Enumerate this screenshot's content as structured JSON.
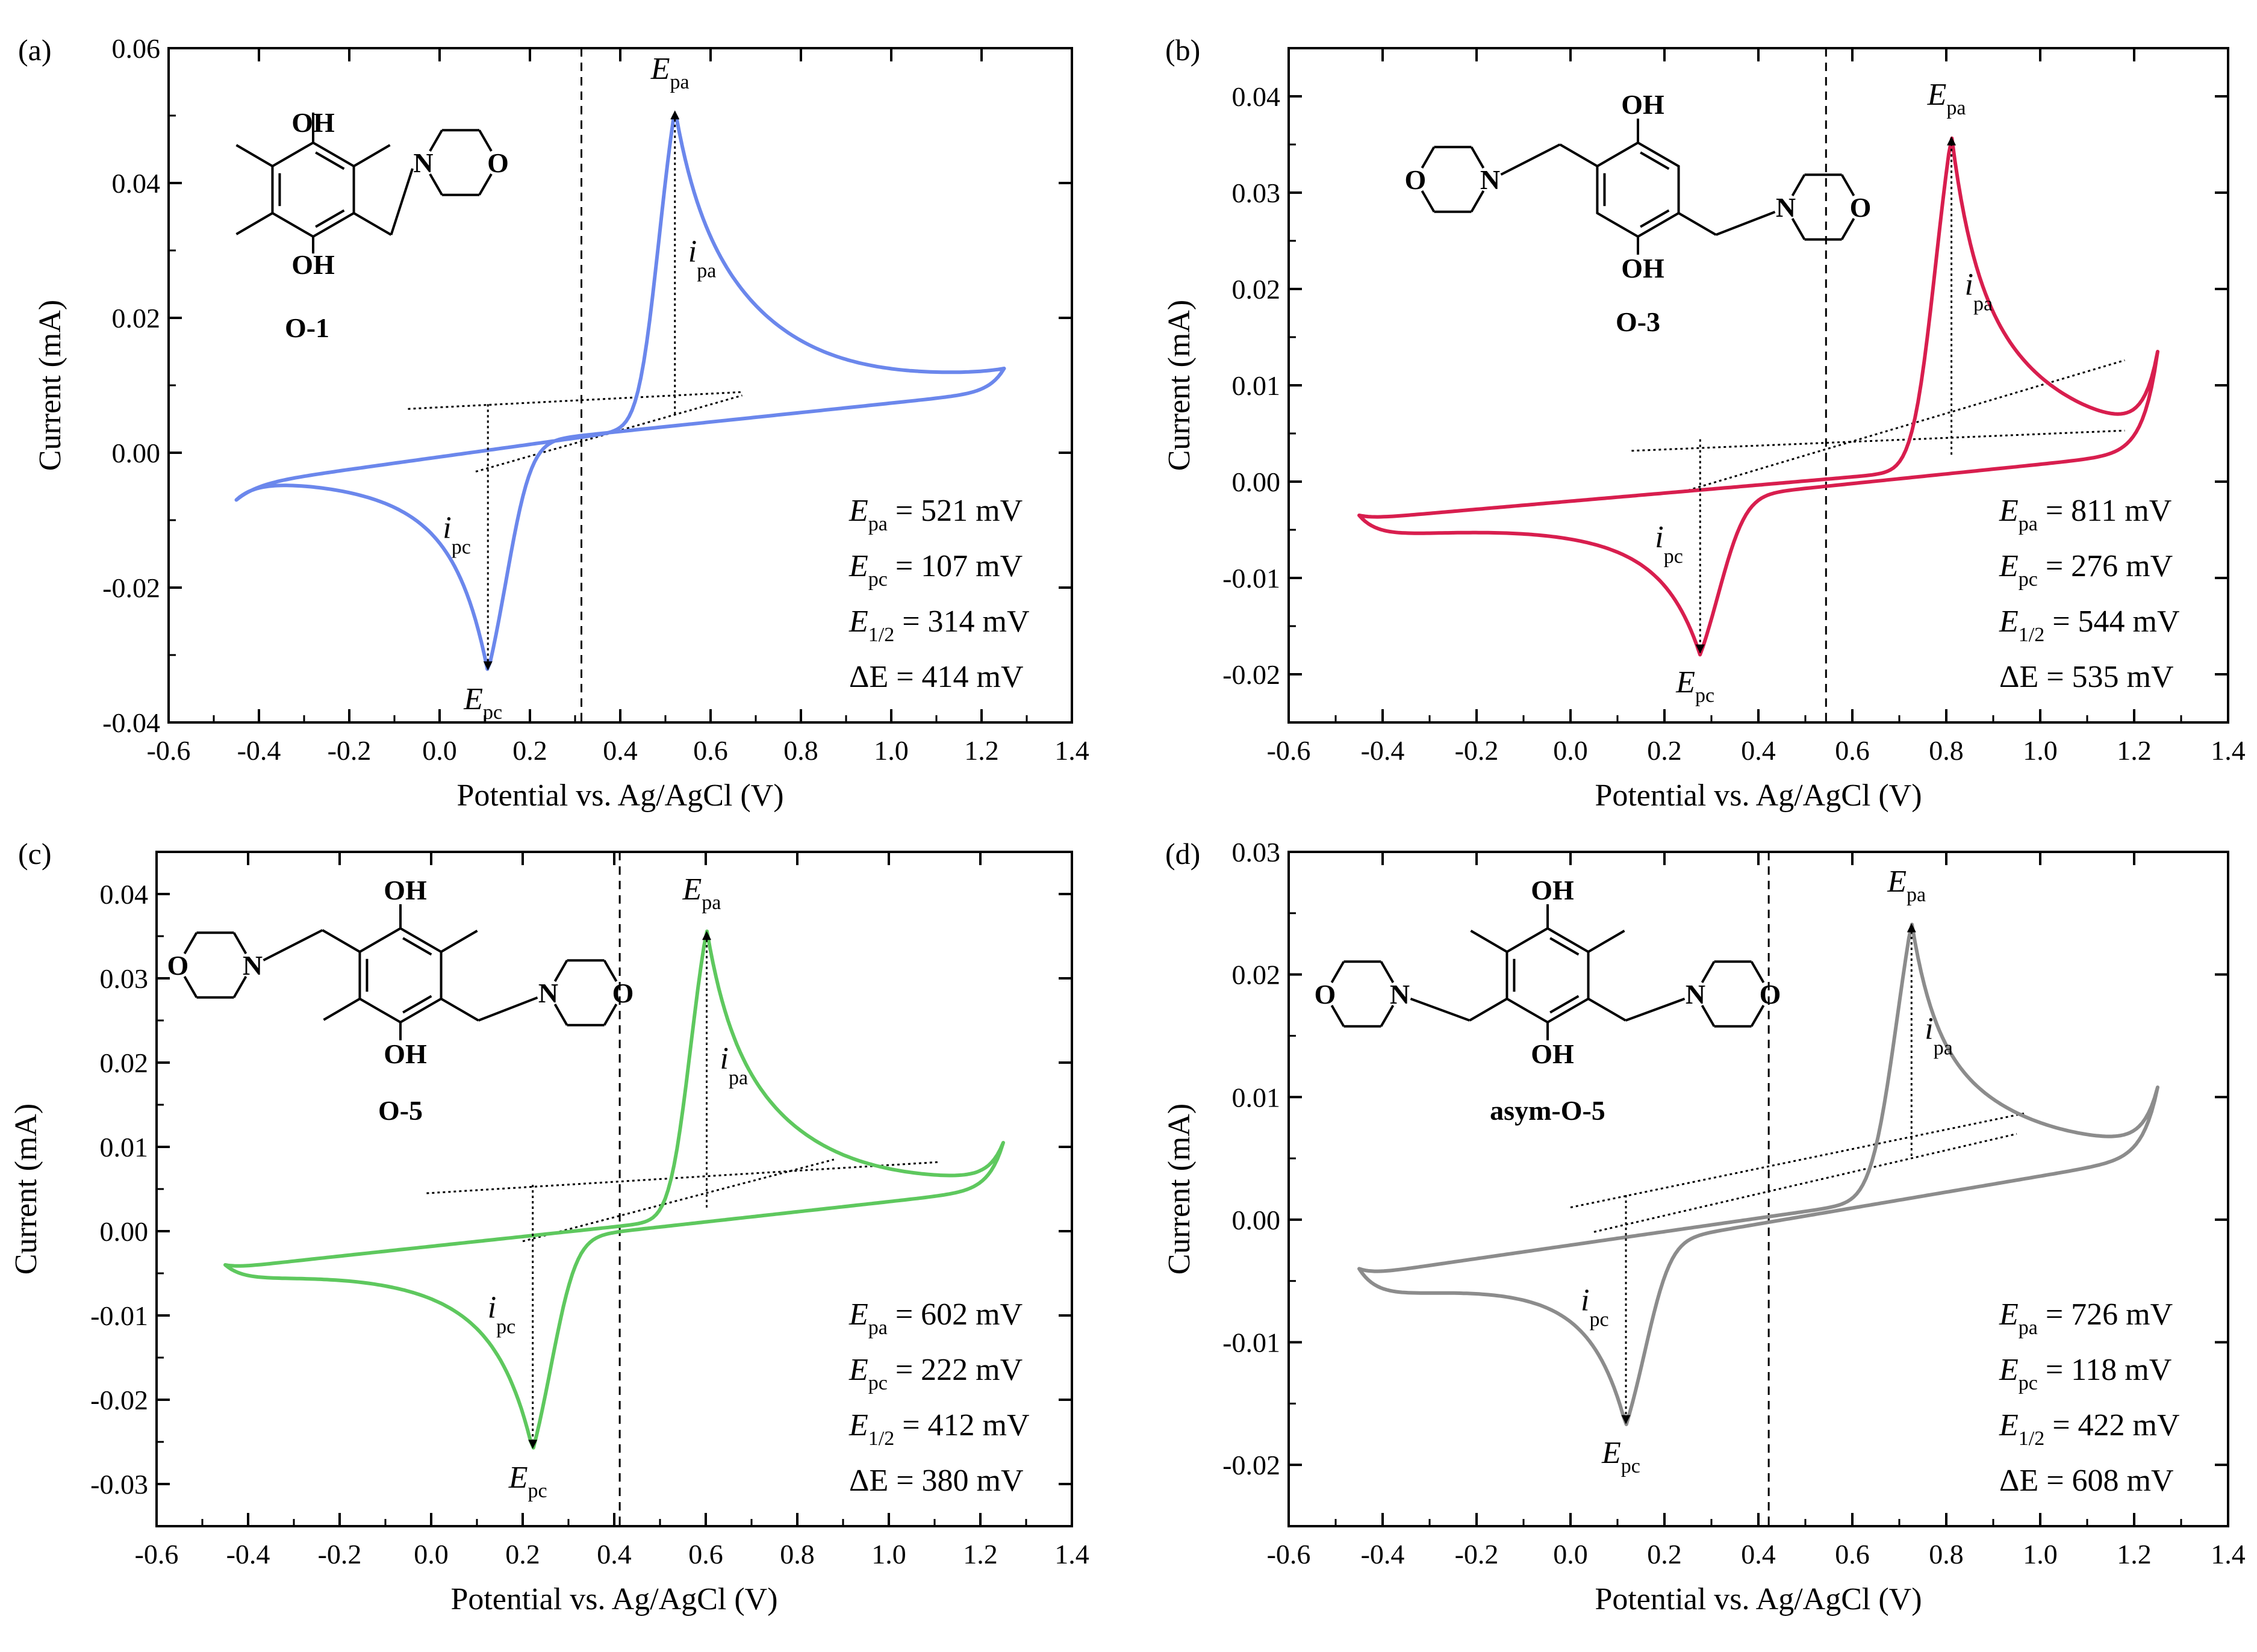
{
  "figure": {
    "xlabel": "Potential vs. Ag/AgCl (V)",
    "ylabel": "Current (mA)"
  },
  "chart_data": [
    {
      "type": "line",
      "panel": "(a)",
      "compound": "O-1",
      "color": "#6b87ec",
      "xlabel": "Potential vs. Ag/AgCl (V)",
      "ylabel": "Current (mA)",
      "xlim": [
        -0.6,
        1.4
      ],
      "ylim": [
        -0.04,
        0.06
      ],
      "xticks": [
        -0.6,
        -0.4,
        -0.2,
        0.0,
        0.2,
        0.4,
        0.6,
        0.8,
        1.0,
        1.2,
        1.4
      ],
      "yticks": [
        -0.04,
        -0.02,
        0.0,
        0.02,
        0.04,
        0.06
      ],
      "xtick_labels": [
        "-0.6",
        "-0.4",
        "-0.2",
        "0.0",
        "0.2",
        "0.4",
        "0.6",
        "0.8",
        "1.0",
        "1.2",
        "1.4"
      ],
      "ytick_labels": [
        "-0.04",
        "-0.02",
        "0.00",
        "0.02",
        "0.04",
        "0.06"
      ],
      "E_half_line": 0.314,
      "scan": {
        "start": -0.45,
        "i_start": -0.007,
        "vertex": 1.25,
        "i_vertex": 0.0125
      },
      "anodic": {
        "Epa": 0.521,
        "ipa_peak": 0.051,
        "base_a": 0.0031,
        "base_s": 0.0093,
        "base_z": 0.4,
        "ox_width": 0.07,
        "tail_amp": 0.037,
        "tail_decay": 0.21
      },
      "cathodic": {
        "Epc": 0.107,
        "ipc_peak": -0.0325,
        "base_a": 0.0033,
        "base_s": 0.007,
        "base_z": 0.42,
        "red_width": 0.085,
        "tail_amp": -0.0172,
        "tail_decay": 0.24
      },
      "baseline_anodic": {
        "x": [
          -0.07,
          0.67
        ],
        "y": [
          0.0065,
          0.009
        ]
      },
      "baseline_cathodic": {
        "x": [
          0.08,
          0.67
        ],
        "y": [
          -0.0028,
          0.0085
        ]
      },
      "ipa_arrow": {
        "x": 0.521,
        "from": 0.0057,
        "to": 0.051
      },
      "ipc_arrow": {
        "x": 0.107,
        "from": 0.0072,
        "to": -0.0325
      },
      "labels": {
        "Epa": "E",
        "Epa_sub": "pa",
        "Epc": "E",
        "Epc_sub": "pc",
        "ipa": "i",
        "ipa_sub": "pa",
        "ipc": "i",
        "ipc_sub": "pc"
      },
      "annotation": [
        {
          "sym": "E",
          "sub": "pa",
          "text": " = 521 mV"
        },
        {
          "sym": "E",
          "sub": "pc",
          "text": " = 107 mV"
        },
        {
          "sym": "E",
          "sub": "1/2",
          "text": " = 314 mV"
        },
        {
          "sym": "ΔE",
          "sub": "",
          "text": " = 414 mV"
        }
      ],
      "structure_labels": [
        "OH",
        "OH",
        "N",
        "O"
      ]
    },
    {
      "type": "line",
      "panel": "(b)",
      "compound": "O-3",
      "color": "#d81e4e",
      "xlabel": "Potential vs. Ag/AgCl (V)",
      "ylabel": "Current (mA)",
      "xlim": [
        -0.6,
        1.4
      ],
      "ylim": [
        -0.025,
        0.045
      ],
      "xticks": [
        -0.6,
        -0.4,
        -0.2,
        0.0,
        0.2,
        0.4,
        0.6,
        0.8,
        1.0,
        1.2,
        1.4
      ],
      "yticks": [
        -0.02,
        -0.01,
        0.0,
        0.01,
        0.02,
        0.03,
        0.04
      ],
      "xtick_labels": [
        "-0.6",
        "-0.4",
        "-0.2",
        "0.0",
        "0.2",
        "0.4",
        "0.6",
        "0.8",
        "1.0",
        "1.2",
        "1.4"
      ],
      "ytick_labels": [
        "-0.02",
        "-0.01",
        "0.00",
        "0.01",
        "0.02",
        "0.03",
        "0.04"
      ],
      "E_half_line": 0.544,
      "scan": {
        "start": -0.45,
        "i_start": -0.0035,
        "vertex": 1.25,
        "i_vertex": 0.0135
      },
      "anodic": {
        "Epa": 0.811,
        "ipa_peak": 0.036,
        "base_a": 0.0007,
        "base_s": 0.0042,
        "base_z": 0.65,
        "ox_width": 0.075,
        "tail_amp": 0.022,
        "tail_decay": 0.2
      },
      "cathodic": {
        "Epc": 0.276,
        "ipc_peak": -0.018,
        "base_a": 0.0003,
        "base_s": 0.005,
        "base_z": 0.7,
        "red_width": 0.09,
        "tail_amp": -0.0095,
        "tail_decay": 0.22
      },
      "baseline_anodic": {
        "x": [
          0.13,
          1.18
        ],
        "y": [
          0.0032,
          0.0053
        ]
      },
      "baseline_cathodic": {
        "x": [
          0.25,
          1.18
        ],
        "y": [
          -0.0009,
          0.0126
        ]
      },
      "ipa_arrow": {
        "x": 0.811,
        "from": 0.0028,
        "to": 0.036
      },
      "ipc_arrow": {
        "x": 0.276,
        "from": 0.0044,
        "to": -0.018
      },
      "labels": {
        "Epa": "E",
        "Epa_sub": "pa",
        "Epc": "E",
        "Epc_sub": "pc",
        "ipa": "i",
        "ipa_sub": "pa",
        "ipc": "i",
        "ipc_sub": "pc"
      },
      "annotation": [
        {
          "sym": "E",
          "sub": "pa",
          "text": " = 811 mV"
        },
        {
          "sym": "E",
          "sub": "pc",
          "text": " = 276 mV"
        },
        {
          "sym": "E",
          "sub": "1/2",
          "text": " = 544 mV"
        },
        {
          "sym": "ΔE",
          "sub": "",
          "text": " = 535 mV"
        }
      ],
      "structure_labels": [
        "OH",
        "OH",
        "N",
        "N",
        "O",
        "O"
      ]
    },
    {
      "type": "line",
      "panel": "(c)",
      "compound": "O-5",
      "color": "#5ec85e",
      "xlabel": "Potential vs. Ag/AgCl (V)",
      "ylabel": "Current (mA)",
      "xlim": [
        -0.6,
        1.4
      ],
      "ylim": [
        -0.035,
        0.045
      ],
      "xticks": [
        -0.6,
        -0.4,
        -0.2,
        0.0,
        0.2,
        0.4,
        0.6,
        0.8,
        1.0,
        1.2,
        1.4
      ],
      "yticks": [
        -0.03,
        -0.02,
        -0.01,
        0.0,
        0.01,
        0.02,
        0.03,
        0.04
      ],
      "xtick_labels": [
        "-0.6",
        "-0.4",
        "-0.2",
        "0.0",
        "0.2",
        "0.4",
        "0.6",
        "0.8",
        "1.0",
        "1.2",
        "1.4"
      ],
      "ytick_labels": [
        "-0.03",
        "-0.02",
        "-0.01",
        "0.00",
        "0.01",
        "0.02",
        "0.03",
        "0.04"
      ],
      "E_half_line": 0.412,
      "scan": {
        "start": -0.45,
        "i_start": -0.004,
        "vertex": 1.25,
        "i_vertex": 0.0105
      },
      "anodic": {
        "Epa": 0.602,
        "ipa_peak": 0.0358,
        "base_a": 0.0011,
        "base_s": 0.0058,
        "base_z": 0.5,
        "ox_width": 0.07,
        "tail_amp": 0.025,
        "tail_decay": 0.2
      },
      "cathodic": {
        "Epc": 0.222,
        "ipc_peak": -0.026,
        "base_a": 0.0008,
        "base_s": 0.006,
        "base_z": 0.55,
        "red_width": 0.085,
        "tail_amp": -0.0145,
        "tail_decay": 0.22
      },
      "baseline_anodic": {
        "x": [
          -0.01,
          1.11
        ],
        "y": [
          0.0045,
          0.0082
        ]
      },
      "baseline_cathodic": {
        "x": [
          0.2,
          0.88
        ],
        "y": [
          -0.0012,
          0.0085
        ]
      },
      "ipa_arrow": {
        "x": 0.602,
        "from": 0.0028,
        "to": 0.0358
      },
      "ipc_arrow": {
        "x": 0.222,
        "from": 0.0055,
        "to": -0.026
      },
      "labels": {
        "Epa": "E",
        "Epa_sub": "pa",
        "Epc": "E",
        "Epc_sub": "pc",
        "ipa": "i",
        "ipa_sub": "pa",
        "ipc": "i",
        "ipc_sub": "pc"
      },
      "annotation": [
        {
          "sym": "E",
          "sub": "pa",
          "text": " = 602 mV"
        },
        {
          "sym": "E",
          "sub": "pc",
          "text": " = 222 mV"
        },
        {
          "sym": "E",
          "sub": "1/2",
          "text": " = 412 mV"
        },
        {
          "sym": "ΔE",
          "sub": "",
          "text": " = 380 mV"
        }
      ],
      "structure_labels": [
        "OH",
        "OH",
        "N",
        "N",
        "O",
        "O"
      ]
    },
    {
      "type": "line",
      "panel": "(d)",
      "compound": "asym-O-5",
      "color": "#8c8c8c",
      "xlabel": "Potential vs. Ag/AgCl (V)",
      "ylabel": "Current (mA)",
      "xlim": [
        -0.6,
        1.4
      ],
      "ylim": [
        -0.025,
        0.03
      ],
      "xticks": [
        -0.6,
        -0.4,
        -0.2,
        0.0,
        0.2,
        0.4,
        0.6,
        0.8,
        1.0,
        1.2,
        1.4
      ],
      "yticks": [
        -0.02,
        -0.01,
        0.0,
        0.01,
        0.02,
        0.03
      ],
      "xtick_labels": [
        "-0.6",
        "-0.4",
        "-0.2",
        "0.0",
        "0.2",
        "0.4",
        "0.6",
        "0.8",
        "1.0",
        "1.2",
        "1.4"
      ],
      "ytick_labels": [
        "-0.02",
        "-0.01",
        "0.00",
        "0.01",
        "0.02",
        "0.03"
      ],
      "E_half_line": 0.422,
      "scan": {
        "start": -0.45,
        "i_start": -0.004,
        "vertex": 1.25,
        "i_vertex": 0.0108
      },
      "anodic": {
        "Epa": 0.726,
        "ipa_peak": 0.0243,
        "base_a": 0.0004,
        "base_s": 0.0055,
        "base_z": 0.45,
        "ox_width": 0.085,
        "tail_amp": 0.014,
        "tail_decay": 0.24
      },
      "cathodic": {
        "Epc": 0.118,
        "ipc_peak": -0.0168,
        "base_a": 0.0003,
        "base_s": 0.0065,
        "base_z": 0.5,
        "red_width": 0.085,
        "tail_amp": -0.0075,
        "tail_decay": 0.22
      },
      "baseline_anodic": {
        "x": [
          0.0,
          0.97
        ],
        "y": [
          0.001,
          0.0087
        ]
      },
      "baseline_cathodic": {
        "x": [
          0.05,
          0.95
        ],
        "y": [
          -0.001,
          0.007
        ]
      },
      "ipa_arrow": {
        "x": 0.726,
        "from": 0.0052,
        "to": 0.0243
      },
      "ipc_arrow": {
        "x": 0.118,
        "from": 0.002,
        "to": -0.0168
      },
      "labels": {
        "Epa": "E",
        "Epa_sub": "pa",
        "Epc": "E",
        "Epc_sub": "pc",
        "ipa": "i",
        "ipa_sub": "pa",
        "ipc": "i",
        "ipc_sub": "pc"
      },
      "annotation": [
        {
          "sym": "E",
          "sub": "pa",
          "text": " = 726 mV"
        },
        {
          "sym": "E",
          "sub": "pc",
          "text": " = 118 mV"
        },
        {
          "sym": "E",
          "sub": "1/2",
          "text": " = 422 mV"
        },
        {
          "sym": "ΔE",
          "sub": "",
          "text": " = 608 mV"
        }
      ],
      "structure_labels": [
        "OH",
        "OH",
        "N",
        "N",
        "O",
        "O"
      ]
    }
  ]
}
